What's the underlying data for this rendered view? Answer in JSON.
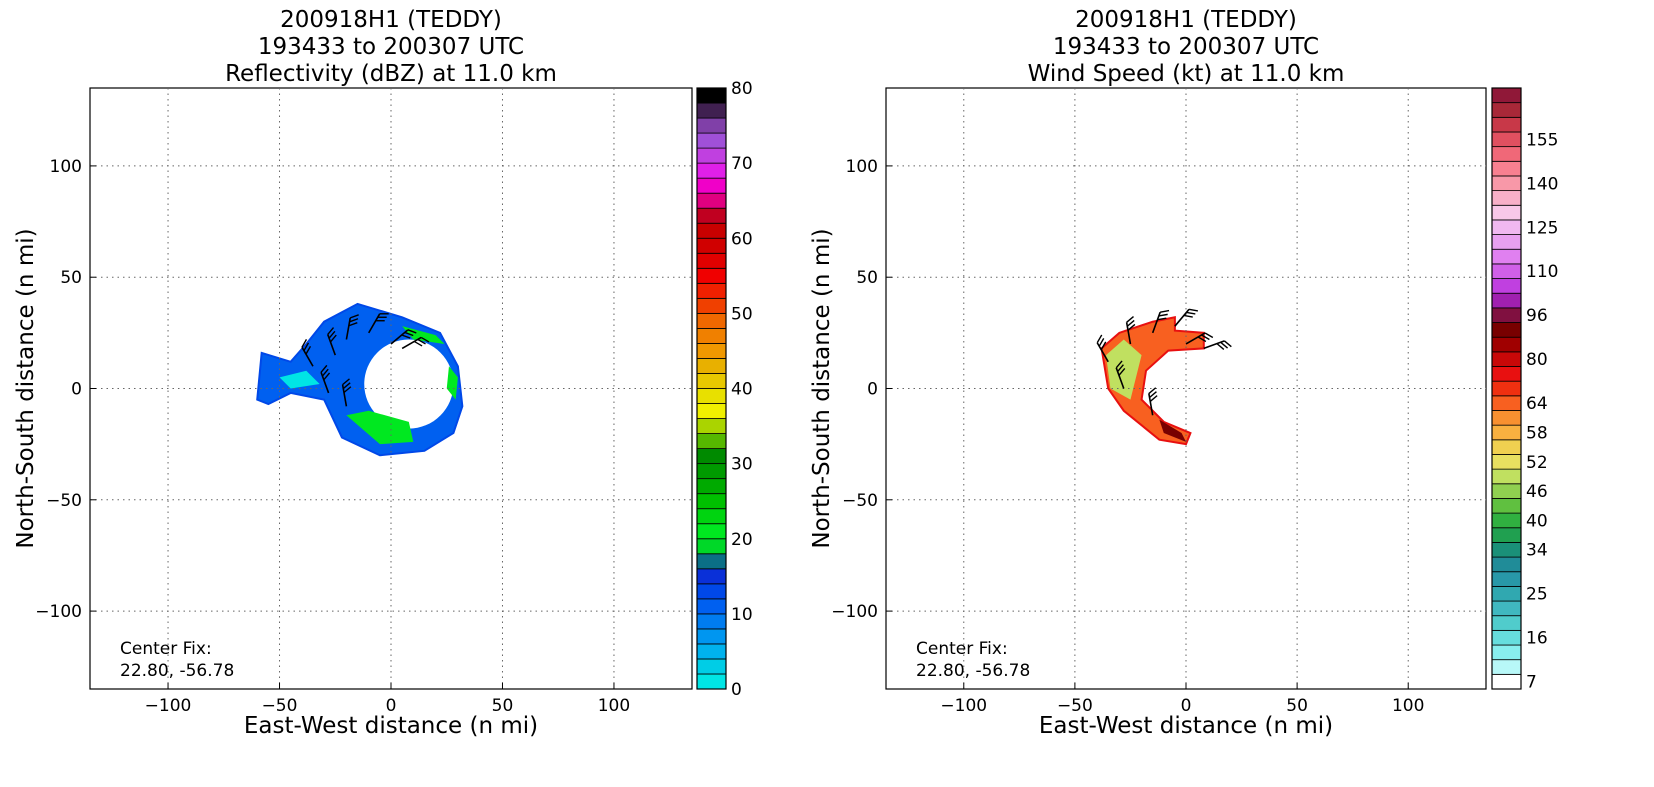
{
  "chart_data": [
    {
      "type": "heatmap",
      "title_lines": [
        "200918H1 (TEDDY)",
        "193433 to 200307 UTC",
        "Reflectivity (dBZ) at 11.0 km"
      ],
      "xlabel": "East-West distance (n mi)",
      "ylabel": "North-South distance (n mi)",
      "xlim": [
        -135,
        135
      ],
      "ylim": [
        -135,
        135
      ],
      "xticks": [
        -100,
        -50,
        0,
        50,
        100
      ],
      "yticks": [
        -100,
        -50,
        0,
        50,
        100
      ],
      "tick_labels": [
        "−100",
        "−50",
        "0",
        "50",
        "100"
      ],
      "grid": true,
      "annotation": [
        "Center Fix:",
        "22.80, -56.78"
      ],
      "colorbar": {
        "min": 0,
        "max": 80,
        "tick_values": [
          0,
          10,
          20,
          30,
          40,
          50,
          60,
          70,
          80
        ],
        "tick_labels": [
          "0",
          "10",
          "20",
          "30",
          "40",
          "50",
          "60",
          "70",
          "80"
        ],
        "colors": [
          "#00e5e5",
          "#00cde6",
          "#00b2ee",
          "#0096f0",
          "#007cf0",
          "#0060f0",
          "#0048e8",
          "#0a30d8",
          "#0b6f86",
          "#00d828",
          "#00e820",
          "#00d410",
          "#00c000",
          "#00aa00",
          "#009a00",
          "#008a00",
          "#56b800",
          "#aad400",
          "#f0f000",
          "#e8e000",
          "#e8c800",
          "#e8b000",
          "#f09800",
          "#f08000",
          "#f06800",
          "#f04000",
          "#f02000",
          "#f00000",
          "#e00000",
          "#d00000",
          "#c80000",
          "#c00020",
          "#e00080",
          "#f000c8",
          "#e020e8",
          "#c040e0",
          "#a050d8",
          "#8040a8",
          "#402050",
          "#000000"
        ]
      },
      "barb_color": "#000000"
    },
    {
      "type": "heatmap",
      "title_lines": [
        "200918H1 (TEDDY)",
        "193433 to 200307 UTC",
        "Wind Speed (kt) at 11.0 km"
      ],
      "xlabel": "East-West distance (n mi)",
      "ylabel": "North-South distance (n mi)",
      "xlim": [
        -135,
        135
      ],
      "ylim": [
        -135,
        135
      ],
      "xticks": [
        -100,
        -50,
        0,
        50,
        100
      ],
      "yticks": [
        -100,
        -50,
        0,
        50,
        100
      ],
      "tick_labels": [
        "−100",
        "−50",
        "0",
        "50",
        "100"
      ],
      "grid": true,
      "annotation": [
        "Center Fix:",
        "22.80, -56.78"
      ],
      "colorbar": {
        "min": 0,
        "max": 40,
        "tick_values": [
          1,
          4,
          7,
          10,
          13,
          16,
          19,
          22,
          25,
          28,
          31,
          34,
          37
        ],
        "tick_labels": [
          "7",
          "16",
          "25",
          "34",
          "40",
          "46",
          "52",
          "58",
          "64",
          "80",
          "96",
          "110",
          "125",
          "140",
          "155"
        ],
        "colors": [
          "#ffffff",
          "#b8f8f8",
          "#88eeee",
          "#66dddd",
          "#50cccc",
          "#40b8c0",
          "#30a8b0",
          "#2898a8",
          "#208c98",
          "#1a9078",
          "#20a050",
          "#30b040",
          "#60c040",
          "#90d050",
          "#c0e060",
          "#e8e060",
          "#f0d050",
          "#f8b040",
          "#f89030",
          "#f86020",
          "#f03010",
          "#e81010",
          "#c80808",
          "#a00000",
          "#780000",
          "#801040",
          "#a020b0",
          "#c040e0",
          "#d060e8",
          "#e080f0",
          "#e8a0f0",
          "#f0b8f0",
          "#f8c8e8",
          "#f8b0c8",
          "#f898a8",
          "#f88090",
          "#f06878",
          "#e05060",
          "#c83848",
          "#a82838",
          "#901838"
        ],
        "label_rows": [
          0,
          3,
          6,
          9,
          11,
          13,
          15,
          17,
          19,
          22,
          25,
          28,
          31,
          34,
          37
        ]
      },
      "barb_color": "#000000"
    }
  ]
}
